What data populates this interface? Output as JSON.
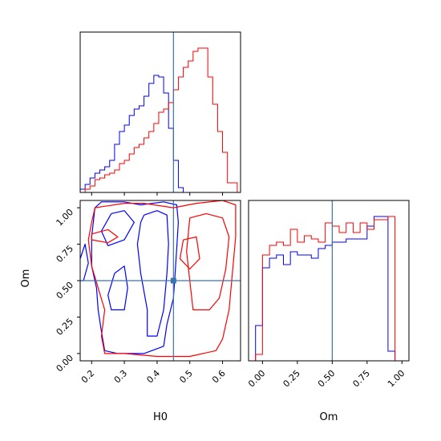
{
  "chart_data": [
    {
      "panel": "H0-marginal",
      "type": "histogram",
      "xlim": [
        0.165,
        0.655
      ],
      "bins_x": [
        0.165,
        0.18,
        0.195,
        0.21,
        0.225,
        0.24,
        0.255,
        0.27,
        0.285,
        0.3,
        0.315,
        0.33,
        0.345,
        0.36,
        0.375,
        0.39,
        0.405,
        0.42,
        0.435,
        0.45,
        0.465,
        0.48,
        0.495,
        0.51,
        0.525,
        0.54,
        0.555,
        0.57,
        0.585,
        0.6,
        0.615,
        0.63,
        0.645
      ],
      "series": [
        {
          "color": "#0000ff",
          "values": [
            0.02,
            0.05,
            0.09,
            0.12,
            0.14,
            0.16,
            0.2,
            0.3,
            0.38,
            0.42,
            0.48,
            0.52,
            0.54,
            0.6,
            0.68,
            0.73,
            0.72,
            0.62,
            0.4,
            0.2,
            0.03,
            0.0,
            0.0,
            0.0,
            0.0,
            0.0,
            0.0,
            0.0,
            0.0,
            0.0,
            0.0,
            0.0
          ]
        },
        {
          "color": "#ff0000",
          "values": [
            0.0,
            0.02,
            0.04,
            0.08,
            0.09,
            0.11,
            0.12,
            0.14,
            0.18,
            0.2,
            0.24,
            0.28,
            0.3,
            0.34,
            0.38,
            0.43,
            0.5,
            0.52,
            0.56,
            0.64,
            0.72,
            0.78,
            0.82,
            0.88,
            0.9,
            0.9,
            0.72,
            0.55,
            0.38,
            0.25,
            0.06,
            0.06
          ]
        }
      ],
      "truth_x": 0.45
    },
    {
      "panel": "H0-Om-joint",
      "type": "contour",
      "xlabel": "H0",
      "ylabel": "Om",
      "xlim": [
        0.165,
        0.655
      ],
      "ylim": [
        -0.05,
        1.05
      ],
      "xticks": [
        "0.2",
        "0.3",
        "0.4",
        "0.5",
        "0.6"
      ],
      "xtick_values": [
        0.2,
        0.3,
        0.4,
        0.5,
        0.6
      ],
      "yticks": [
        "0.00",
        "0.25",
        "0.50",
        "0.75",
        "1.00"
      ],
      "ytick_values": [
        0.0,
        0.25,
        0.5,
        0.75,
        1.0
      ],
      "truth": {
        "x": 0.45,
        "y": 0.5
      },
      "series": [
        {
          "color": "#0000ff",
          "contours": [
            [
              [
                0.21,
                1.0
              ],
              [
                0.23,
                1.04
              ],
              [
                0.3,
                1.04
              ],
              [
                0.35,
                1.02
              ],
              [
                0.42,
                1.04
              ],
              [
                0.46,
                1.02
              ],
              [
                0.465,
                0.9
              ],
              [
                0.46,
                0.72
              ],
              [
                0.455,
                0.55
              ],
              [
                0.45,
                0.38
              ],
              [
                0.43,
                0.2
              ],
              [
                0.42,
                0.05
              ],
              [
                0.36,
                0.0
              ],
              [
                0.28,
                0.0
              ],
              [
                0.24,
                0.02
              ],
              [
                0.23,
                0.15
              ],
              [
                0.22,
                0.3
              ],
              [
                0.215,
                0.45
              ],
              [
                0.2,
                0.6
              ],
              [
                0.2,
                0.8
              ],
              [
                0.21,
                1.0
              ]
            ],
            [
              [
                0.36,
                0.95
              ],
              [
                0.4,
                0.98
              ],
              [
                0.43,
                0.95
              ],
              [
                0.435,
                0.75
              ],
              [
                0.43,
                0.55
              ],
              [
                0.42,
                0.3
              ],
              [
                0.4,
                0.12
              ],
              [
                0.37,
                0.12
              ],
              [
                0.37,
                0.3
              ],
              [
                0.35,
                0.55
              ],
              [
                0.34,
                0.75
              ],
              [
                0.35,
                0.9
              ],
              [
                0.36,
                0.95
              ]
            ],
            [
              [
                0.26,
                0.96
              ],
              [
                0.3,
                0.98
              ],
              [
                0.33,
                0.9
              ],
              [
                0.3,
                0.78
              ],
              [
                0.25,
                0.74
              ],
              [
                0.23,
                0.84
              ],
              [
                0.26,
                0.96
              ]
            ],
            [
              [
                0.27,
                0.55
              ],
              [
                0.3,
                0.6
              ],
              [
                0.31,
                0.45
              ],
              [
                0.3,
                0.3
              ],
              [
                0.26,
                0.3
              ],
              [
                0.25,
                0.4
              ],
              [
                0.27,
                0.55
              ]
            ],
            [
              [
                0.165,
                0.65
              ],
              [
                0.18,
                0.75
              ],
              [
                0.19,
                0.62
              ],
              [
                0.175,
                0.5
              ],
              [
                0.165,
                0.5
              ]
            ]
          ]
        },
        {
          "color": "#ff0000",
          "contours": [
            [
              [
                0.2,
                0.9
              ],
              [
                0.21,
                1.0
              ],
              [
                0.3,
                1.03
              ],
              [
                0.36,
                1.03
              ],
              [
                0.45,
                1.0
              ],
              [
                0.52,
                1.03
              ],
              [
                0.6,
                1.05
              ],
              [
                0.64,
                1.02
              ],
              [
                0.64,
                0.8
              ],
              [
                0.63,
                0.55
              ],
              [
                0.62,
                0.3
              ],
              [
                0.6,
                0.1
              ],
              [
                0.58,
                0.02
              ],
              [
                0.5,
                -0.02
              ],
              [
                0.4,
                -0.02
              ],
              [
                0.3,
                0.0
              ],
              [
                0.24,
                0.0
              ],
              [
                0.23,
                0.12
              ],
              [
                0.24,
                0.3
              ],
              [
                0.22,
                0.45
              ],
              [
                0.2,
                0.6
              ],
              [
                0.19,
                0.78
              ],
              [
                0.2,
                0.9
              ]
            ],
            [
              [
                0.5,
                0.93
              ],
              [
                0.55,
                0.96
              ],
              [
                0.6,
                0.93
              ],
              [
                0.62,
                0.8
              ],
              [
                0.61,
                0.58
              ],
              [
                0.59,
                0.38
              ],
              [
                0.56,
                0.3
              ],
              [
                0.51,
                0.3
              ],
              [
                0.5,
                0.5
              ],
              [
                0.49,
                0.7
              ],
              [
                0.5,
                0.93
              ]
            ],
            [
              [
                0.48,
                0.78
              ],
              [
                0.52,
                0.8
              ],
              [
                0.53,
                0.65
              ],
              [
                0.5,
                0.58
              ],
              [
                0.47,
                0.65
              ],
              [
                0.48,
                0.78
              ]
            ],
            [
              [
                0.2,
                0.82
              ],
              [
                0.25,
                0.85
              ],
              [
                0.28,
                0.8
              ],
              [
                0.25,
                0.76
              ],
              [
                0.2,
                0.78
              ],
              [
                0.2,
                0.82
              ]
            ]
          ]
        }
      ]
    },
    {
      "panel": "Om-marginal",
      "type": "histogram",
      "xlabel": "Om",
      "xlim": [
        -0.1,
        1.05
      ],
      "xticks": [
        "0.00",
        "0.25",
        "0.50",
        "0.75",
        "1.00"
      ],
      "xtick_values": [
        0.0,
        0.25,
        0.5,
        0.75,
        1.0
      ],
      "bins_x": [
        -0.05,
        0.0,
        0.05,
        0.1,
        0.15,
        0.2,
        0.25,
        0.3,
        0.35,
        0.4,
        0.45,
        0.5,
        0.55,
        0.6,
        0.65,
        0.7,
        0.75,
        0.8,
        0.85,
        0.9,
        0.95,
        1.0
      ],
      "series": [
        {
          "color": "#0000ff",
          "values": [
            0.22,
            0.58,
            0.64,
            0.66,
            0.6,
            0.68,
            0.66,
            0.66,
            0.64,
            0.7,
            0.72,
            0.74,
            0.74,
            0.76,
            0.76,
            0.76,
            0.84,
            0.9,
            0.9,
            0.06,
            0.0
          ]
        },
        {
          "color": "#ff0000",
          "values": [
            0.04,
            0.66,
            0.72,
            0.74,
            0.72,
            0.82,
            0.74,
            0.78,
            0.76,
            0.74,
            0.86,
            0.84,
            0.8,
            0.86,
            0.8,
            0.86,
            0.82,
            0.88,
            0.88,
            0.9,
            0.0
          ]
        }
      ],
      "truth_x": 0.5
    }
  ]
}
